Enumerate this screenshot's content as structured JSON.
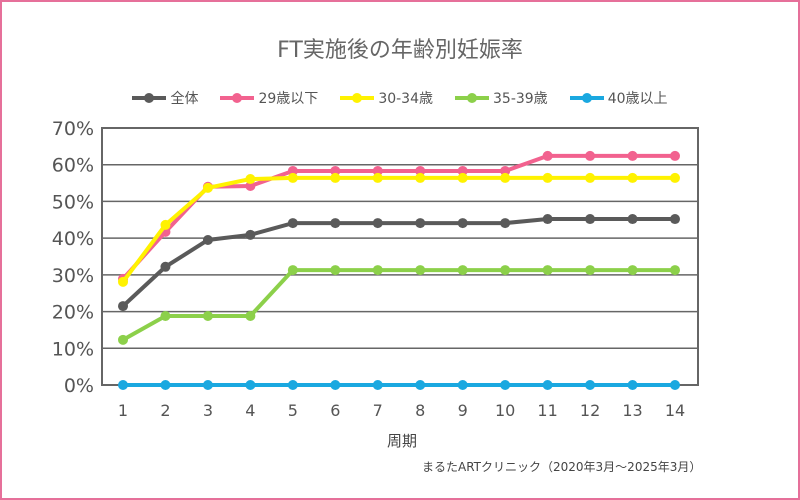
{
  "chart_data": {
    "type": "line",
    "title": "FT実施後の年齢別妊娠率",
    "xlabel": "周期",
    "ylabel": "",
    "x": [
      1,
      2,
      3,
      4,
      5,
      6,
      7,
      8,
      9,
      10,
      11,
      12,
      13,
      14
    ],
    "ylim": [
      0,
      70
    ],
    "yticks": [
      "0%",
      "10%",
      "20%",
      "30%",
      "40%",
      "50%",
      "60%",
      "70%"
    ],
    "grid": true,
    "legend_position": "top",
    "source": "まるたARTクリニック（2020年3月～2025年3月）",
    "series": [
      {
        "name": "全体",
        "color": "#5a5a5a",
        "values": [
          21.5,
          32.2,
          39.5,
          40.9,
          44.1,
          44.1,
          44.1,
          44.1,
          44.1,
          44.1,
          45.2,
          45.2,
          45.2,
          45.2
        ]
      },
      {
        "name": "29歳以下",
        "color": "#f2628f",
        "values": [
          28.9,
          41.7,
          54.0,
          54.2,
          58.3,
          58.3,
          58.3,
          58.3,
          58.3,
          58.3,
          62.4,
          62.4,
          62.4,
          62.4
        ]
      },
      {
        "name": "30-34歳",
        "color": "#fff200",
        "values": [
          28.1,
          43.6,
          53.7,
          56.1,
          56.4,
          56.4,
          56.4,
          56.4,
          56.4,
          56.4,
          56.4,
          56.4,
          56.4,
          56.4
        ]
      },
      {
        "name": "35-39歳",
        "color": "#8cd04a",
        "values": [
          12.3,
          18.8,
          18.8,
          18.8,
          31.3,
          31.3,
          31.3,
          31.3,
          31.3,
          31.3,
          31.3,
          31.3,
          31.3,
          31.3
        ]
      },
      {
        "name": "40歳以上",
        "color": "#1aa8e0",
        "values": [
          0,
          0,
          0,
          0,
          0,
          0,
          0,
          0,
          0,
          0,
          0,
          0,
          0,
          0
        ]
      }
    ]
  }
}
